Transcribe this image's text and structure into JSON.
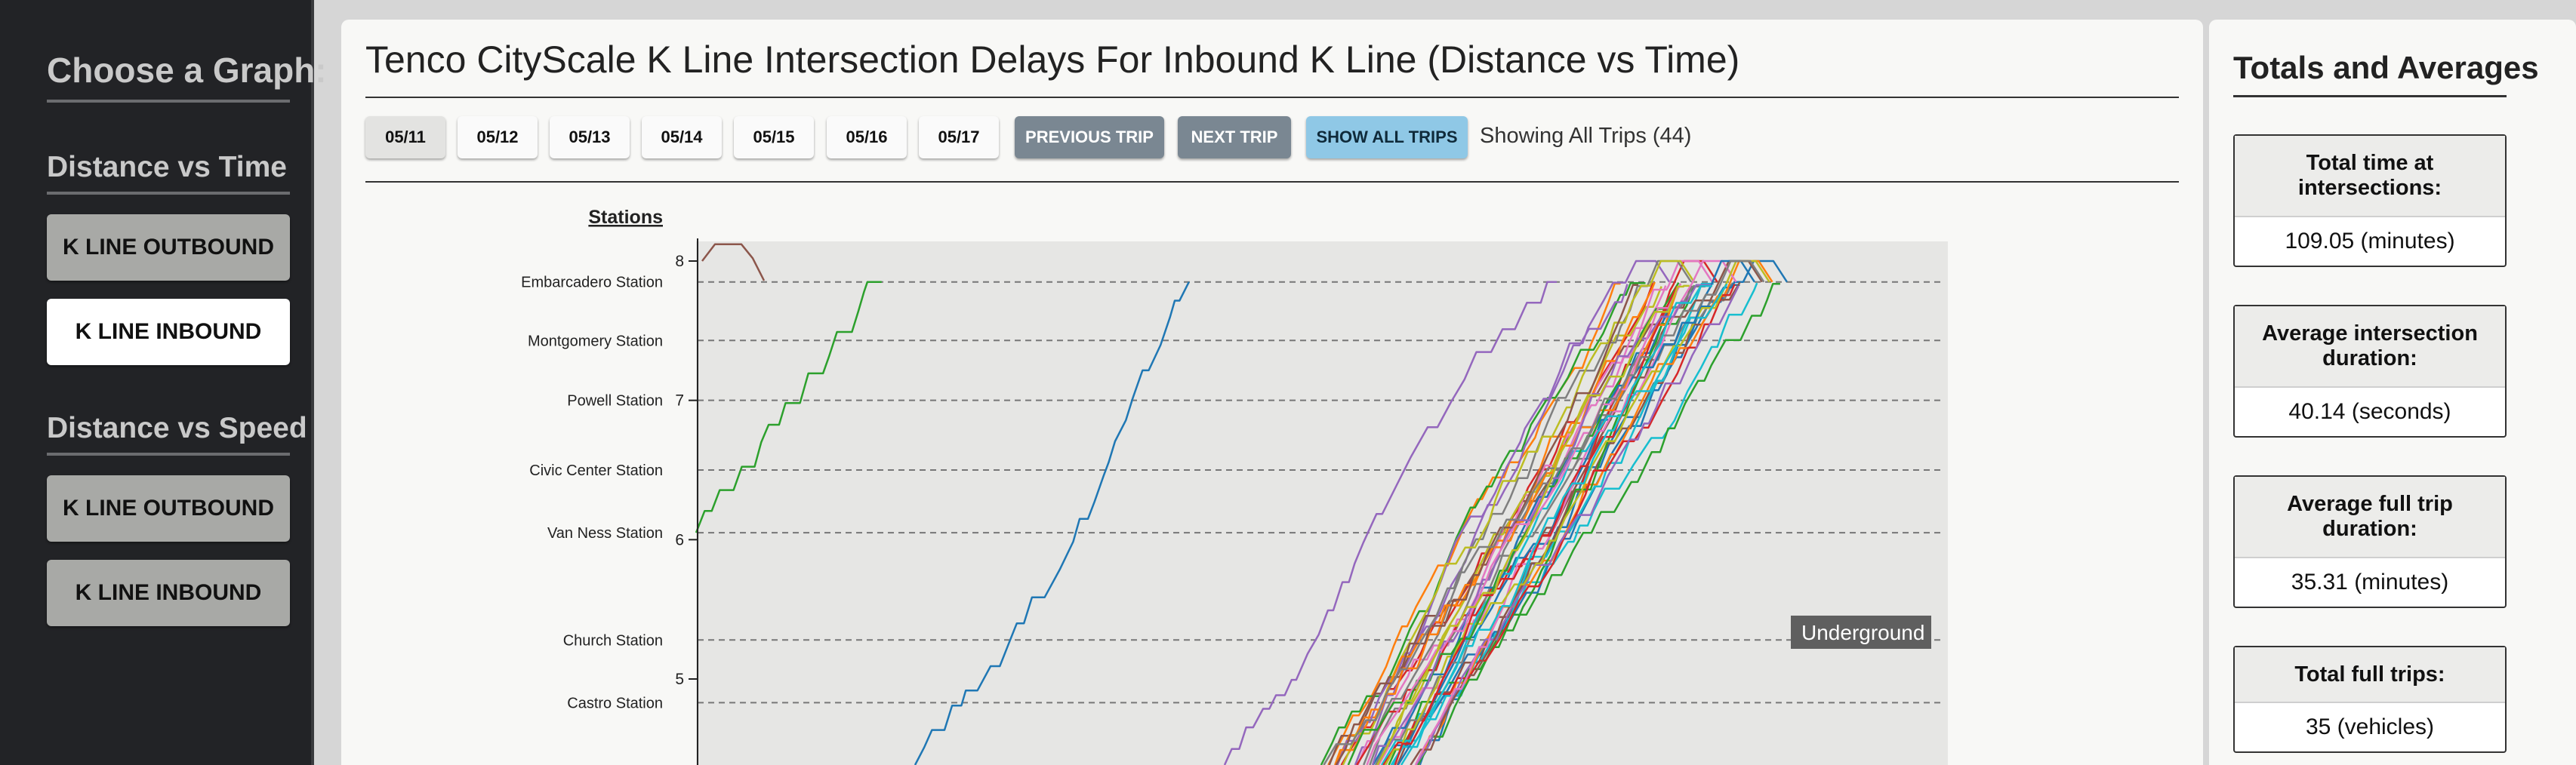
{
  "sidebar": {
    "title": "Choose a Graph:",
    "sections": [
      {
        "heading": "Distance vs Time",
        "buttons": [
          {
            "label": "K LINE OUTBOUND"
          },
          {
            "label": "K LINE INBOUND"
          }
        ]
      },
      {
        "heading": "Distance vs Speed",
        "buttons": [
          {
            "label": "K LINE OUTBOUND"
          },
          {
            "label": "K LINE INBOUND"
          }
        ]
      }
    ],
    "active_button": "Distance vs Time / K LINE INBOUND"
  },
  "main": {
    "title": "Tenco CityScale K Line Intersection Delays For Inbound K Line (Distance vs Time)",
    "dates": [
      "05/11",
      "05/12",
      "05/13",
      "05/14",
      "05/15",
      "05/16",
      "05/17"
    ],
    "active_date": "05/11",
    "prev_label": "PREVIOUS TRIP",
    "next_label": "NEXT TRIP",
    "show_all_label": "SHOW ALL TRIPS",
    "showing_text": "Showing All Trips (44)"
  },
  "chart_data": {
    "type": "line",
    "y_axis_title": "Stations",
    "yticks": [
      "8",
      "7",
      "6",
      "5"
    ],
    "stations": [
      {
        "name": "Embarcadero Station",
        "y": 7.85
      },
      {
        "name": "Montgomery Station",
        "y": 7.43
      },
      {
        "name": "Powell Station",
        "y": 7.0
      },
      {
        "name": "Civic Center Station",
        "y": 6.5
      },
      {
        "name": "Van Ness Station",
        "y": 6.05
      },
      {
        "name": "Church Station",
        "y": 5.28
      },
      {
        "name": "Castro Station",
        "y": 4.83
      }
    ],
    "annotation": "Underground",
    "colors": [
      "#1f77b4",
      "#ff7f0e",
      "#2ca02c",
      "#d62728",
      "#9467bd",
      "#8c564b",
      "#e377c2",
      "#7f7f7f",
      "#bcbd22",
      "#17becf"
    ]
  },
  "stats": {
    "title": "Totals and Averages",
    "items": [
      {
        "label": "Total time at intersections:",
        "value": "109.05 (minutes)"
      },
      {
        "label": "Average intersection duration:",
        "value": "40.14 (seconds)"
      },
      {
        "label": "Average full trip duration:",
        "value": "35.31 (minutes)"
      },
      {
        "label": "Total full trips:",
        "value": "35 (vehicles)"
      }
    ]
  }
}
